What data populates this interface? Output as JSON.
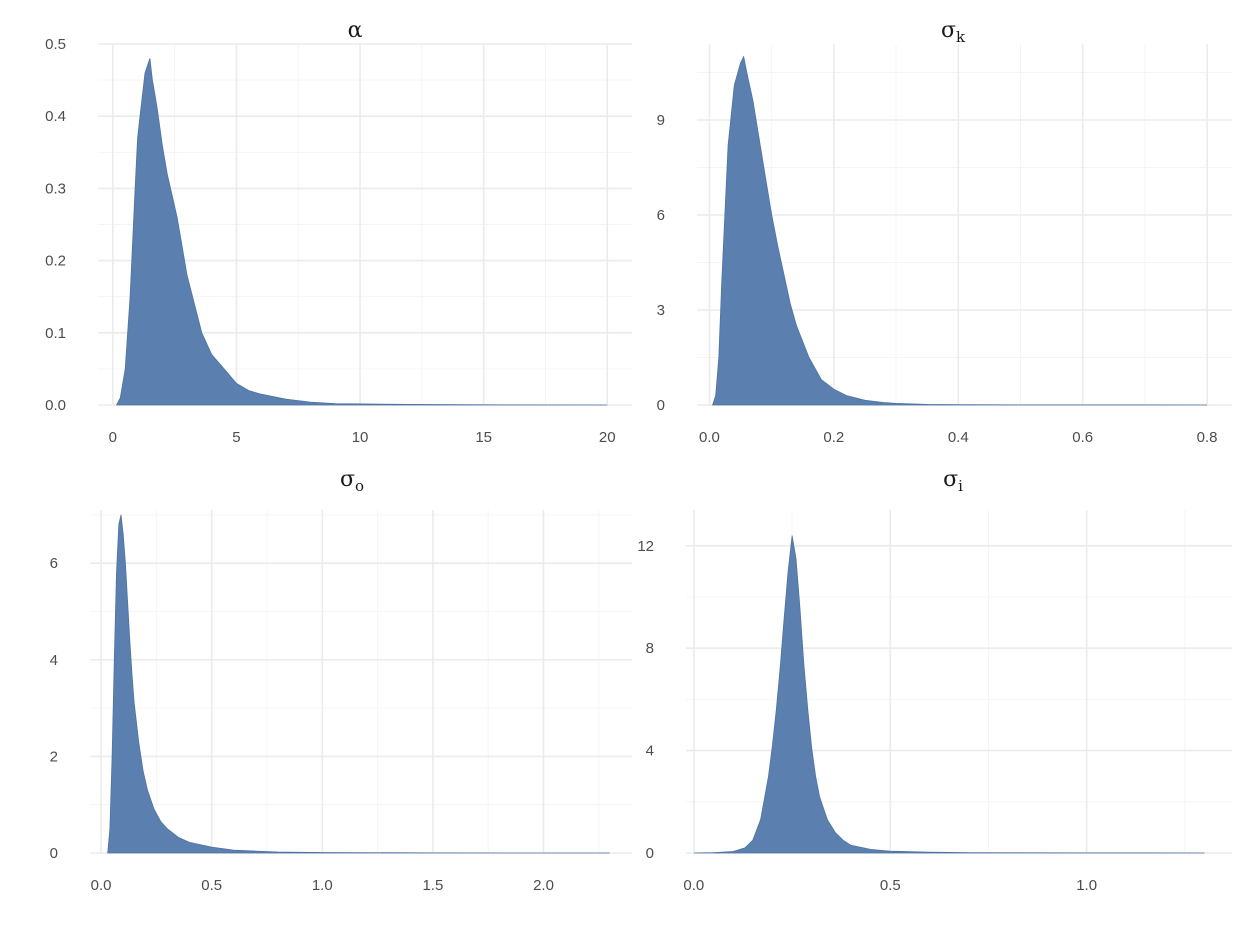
{
  "chart_data": [
    {
      "type": "area",
      "title": "α",
      "title_sub": "",
      "xlabel": "",
      "ylabel": "",
      "xlim": [
        -0.6,
        21.0
      ],
      "ylim": [
        0,
        0.5
      ],
      "xticks": [
        0,
        5,
        10,
        15,
        20
      ],
      "xtick_labels": [
        "0",
        "5",
        "10",
        "15",
        "20"
      ],
      "yticks": [
        0,
        0.1,
        0.2,
        0.3,
        0.4,
        0.5
      ],
      "ytick_labels": [
        "0.0",
        "0.1",
        "0.2",
        "0.3",
        "0.4",
        "0.5"
      ],
      "grid": true,
      "legend": "none",
      "fill_color": "#5b7fae",
      "x": [
        0.15,
        0.3,
        0.5,
        0.7,
        0.9,
        1.0,
        1.1,
        1.2,
        1.3,
        1.4,
        1.5,
        1.6,
        1.7,
        1.8,
        2.0,
        2.2,
        2.4,
        2.6,
        2.8,
        3.0,
        3.3,
        3.6,
        4.0,
        4.5,
        5.0,
        5.5,
        6.0,
        7.0,
        8.0,
        9.0,
        10.0,
        12.0,
        14.0,
        16.0,
        20.0
      ],
      "y": [
        0.0,
        0.01,
        0.05,
        0.15,
        0.3,
        0.37,
        0.4,
        0.43,
        0.46,
        0.47,
        0.48,
        0.45,
        0.43,
        0.41,
        0.36,
        0.32,
        0.29,
        0.26,
        0.22,
        0.18,
        0.14,
        0.1,
        0.07,
        0.05,
        0.03,
        0.02,
        0.015,
        0.008,
        0.004,
        0.002,
        0.0015,
        0.0008,
        0.0005,
        0.0002,
        0.0
      ]
    },
    {
      "type": "area",
      "title": "σ",
      "title_sub": "k",
      "xlabel": "",
      "ylabel": "",
      "xlim": [
        -0.02,
        0.84
      ],
      "ylim": [
        0,
        11.4
      ],
      "xticks": [
        0,
        0.2,
        0.4,
        0.6,
        0.8
      ],
      "xtick_labels": [
        "0.0",
        "0.2",
        "0.4",
        "0.6",
        "0.8"
      ],
      "yticks": [
        0,
        3,
        6,
        9
      ],
      "ytick_labels": [
        "0",
        "3",
        "6",
        "9"
      ],
      "grid": true,
      "legend": "none",
      "fill_color": "#5b7fae",
      "x": [
        0.005,
        0.01,
        0.015,
        0.02,
        0.03,
        0.04,
        0.05,
        0.055,
        0.06,
        0.07,
        0.08,
        0.09,
        0.1,
        0.11,
        0.12,
        0.13,
        0.14,
        0.15,
        0.16,
        0.18,
        0.2,
        0.22,
        0.25,
        0.28,
        0.3,
        0.35,
        0.4,
        0.5,
        0.6,
        0.8
      ],
      "y": [
        0.0,
        0.3,
        1.5,
        4.0,
        8.2,
        10.1,
        10.8,
        11.0,
        10.5,
        9.6,
        8.4,
        7.2,
        6.0,
        5.0,
        4.1,
        3.2,
        2.5,
        2.0,
        1.5,
        0.8,
        0.5,
        0.3,
        0.15,
        0.08,
        0.05,
        0.02,
        0.01,
        0.004,
        0.002,
        0.0
      ]
    },
    {
      "type": "area",
      "title": "σ",
      "title_sub": "o",
      "xlabel": "",
      "ylabel": "",
      "xlim": [
        -0.05,
        2.4
      ],
      "ylim": [
        0,
        7.1
      ],
      "xticks": [
        0,
        0.5,
        1.0,
        1.5,
        2.0
      ],
      "xtick_labels": [
        "0.0",
        "0.5",
        "1.0",
        "1.5",
        "2.0"
      ],
      "yticks": [
        0,
        2,
        4,
        6
      ],
      "ytick_labels": [
        "0",
        "2",
        "4",
        "6"
      ],
      "grid": true,
      "legend": "none",
      "fill_color": "#5b7fae",
      "x": [
        0.03,
        0.04,
        0.05,
        0.06,
        0.07,
        0.08,
        0.09,
        0.1,
        0.11,
        0.12,
        0.13,
        0.14,
        0.15,
        0.17,
        0.19,
        0.21,
        0.24,
        0.27,
        0.3,
        0.35,
        0.4,
        0.5,
        0.6,
        0.7,
        0.8,
        1.0,
        1.5,
        2.0,
        2.3
      ],
      "y": [
        0.0,
        0.5,
        2.0,
        4.0,
        5.8,
        6.8,
        7.0,
        6.6,
        6.0,
        5.2,
        4.4,
        3.7,
        3.1,
        2.3,
        1.7,
        1.3,
        0.9,
        0.65,
        0.5,
        0.32,
        0.22,
        0.12,
        0.06,
        0.04,
        0.02,
        0.01,
        0.003,
        0.001,
        0.0
      ]
    },
    {
      "type": "area",
      "title": "σ",
      "title_sub": "i",
      "xlabel": "",
      "ylabel": "",
      "xlim": [
        -0.02,
        1.37
      ],
      "ylim": [
        0,
        13.4
      ],
      "xticks": [
        0,
        0.5,
        1.0
      ],
      "xtick_labels": [
        "0.0",
        "0.5",
        "1.0"
      ],
      "yticks": [
        0,
        4,
        8,
        12
      ],
      "ytick_labels": [
        "0",
        "4",
        "8",
        "12"
      ],
      "grid": true,
      "legend": "none",
      "fill_color": "#5b7fae",
      "x": [
        0.0,
        0.05,
        0.1,
        0.13,
        0.15,
        0.17,
        0.19,
        0.2,
        0.21,
        0.22,
        0.23,
        0.24,
        0.25,
        0.26,
        0.27,
        0.28,
        0.29,
        0.3,
        0.31,
        0.32,
        0.34,
        0.36,
        0.38,
        0.4,
        0.45,
        0.5,
        0.6,
        0.7,
        0.8,
        1.0,
        1.3
      ],
      "y": [
        0.0,
        0.01,
        0.06,
        0.2,
        0.5,
        1.3,
        3.0,
        4.2,
        5.6,
        7.3,
        9.2,
        11.0,
        12.4,
        11.5,
        9.6,
        7.4,
        5.6,
        4.1,
        3.0,
        2.2,
        1.3,
        0.8,
        0.5,
        0.3,
        0.14,
        0.07,
        0.03,
        0.015,
        0.007,
        0.002,
        0.0
      ]
    }
  ]
}
